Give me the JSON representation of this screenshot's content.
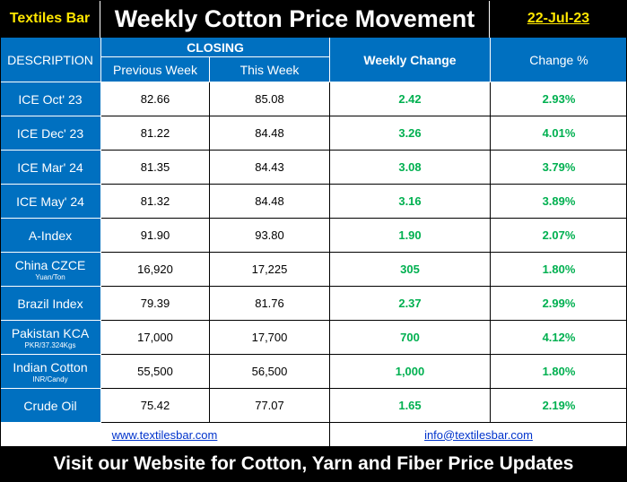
{
  "header": {
    "brand": "Textiles Bar",
    "title": "Weekly Cotton Price Movement",
    "date": "22-Jul-23"
  },
  "columns": {
    "description": "DESCRIPTION",
    "closing": "CLOSING",
    "previous_week": "Previous Week",
    "this_week": "This Week",
    "weekly_change": "Weekly Change",
    "change_pct": "Change %"
  },
  "rows": [
    {
      "desc": "ICE Oct' 23",
      "sub": "",
      "prev": "82.66",
      "curr": "85.08",
      "change": "2.42",
      "pct": "2.93%"
    },
    {
      "desc": "ICE Dec' 23",
      "sub": "",
      "prev": "81.22",
      "curr": "84.48",
      "change": "3.26",
      "pct": "4.01%"
    },
    {
      "desc": "ICE Mar' 24",
      "sub": "",
      "prev": "81.35",
      "curr": "84.43",
      "change": "3.08",
      "pct": "3.79%"
    },
    {
      "desc": "ICE May' 24",
      "sub": "",
      "prev": "81.32",
      "curr": "84.48",
      "change": "3.16",
      "pct": "3.89%"
    },
    {
      "desc": "A-Index",
      "sub": "",
      "prev": "91.90",
      "curr": "93.80",
      "change": "1.90",
      "pct": "2.07%"
    },
    {
      "desc": "China CZCE",
      "sub": "Yuan/Ton",
      "prev": "16,920",
      "curr": "17,225",
      "change": "305",
      "pct": "1.80%"
    },
    {
      "desc": "Brazil Index",
      "sub": "",
      "prev": "79.39",
      "curr": "81.76",
      "change": "2.37",
      "pct": "2.99%"
    },
    {
      "desc": "Pakistan  KCA",
      "sub": "PKR/37.324Kgs",
      "prev": "17,000",
      "curr": "17,700",
      "change": "700",
      "pct": "4.12%"
    },
    {
      "desc": "Indian Cotton",
      "sub": "INR/Candy",
      "prev": "55,500",
      "curr": "56,500",
      "change": "1,000",
      "pct": "1.80%"
    },
    {
      "desc": "Crude Oil",
      "sub": "",
      "prev": "75.42",
      "curr": "77.07",
      "change": "1.65",
      "pct": "2.19%"
    }
  ],
  "footer": {
    "website": "www.textilesbar.com",
    "email": "info@textilesbar.com",
    "banner": "Visit our Website for Cotton, Yarn and Fiber Price Updates"
  },
  "colors": {
    "header_blue": "#0070c0",
    "positive_green": "#00b050",
    "brand_yellow": "#ffe600"
  }
}
